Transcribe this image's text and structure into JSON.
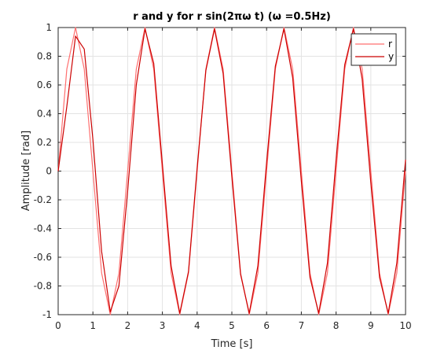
{
  "chart_data": {
    "type": "line",
    "title": "r and y for r sin(2πω t) (ω =0.5Hz)",
    "xlabel": "Time [s]",
    "ylabel": "Amplitude [rad]",
    "xlim": [
      0,
      10
    ],
    "ylim": [
      -1,
      1
    ],
    "xticks": [
      0,
      1,
      2,
      3,
      4,
      5,
      6,
      7,
      8,
      9,
      10
    ],
    "xtick_labels": [
      "0",
      "1",
      "2",
      "3",
      "4",
      "5",
      "6",
      "7",
      "8",
      "9",
      "10"
    ],
    "yticks": [
      -1,
      -0.8,
      -0.6,
      -0.4,
      -0.2,
      0,
      0.2,
      0.4,
      0.6,
      0.8,
      1
    ],
    "ytick_labels": [
      "-1",
      "-0.8",
      "-0.6",
      "-0.4",
      "-0.2",
      "0",
      "0.2",
      "0.4",
      "0.6",
      "0.8",
      "1"
    ],
    "grid": true,
    "legend_position": "top-right",
    "series": [
      {
        "name": "r",
        "color": "#ff6f6f",
        "x": [
          0,
          0.25,
          0.5,
          0.75,
          1,
          1.25,
          1.5,
          1.75,
          2,
          2.25,
          2.5,
          2.75,
          3,
          3.25,
          3.5,
          3.75,
          4,
          4.25,
          4.5,
          4.75,
          5,
          5.25,
          5.5,
          5.75,
          6,
          6.25,
          6.5,
          6.75,
          7,
          7.25,
          7.5,
          7.75,
          8,
          8.25,
          8.5,
          8.75,
          9,
          9.25,
          9.5,
          9.75,
          10
        ],
        "y": [
          0,
          0.71,
          1,
          0.71,
          0,
          -0.71,
          -1,
          -0.71,
          0,
          0.71,
          1,
          0.71,
          0,
          -0.71,
          -1,
          -0.71,
          0,
          0.71,
          1,
          0.71,
          0,
          -0.71,
          -1,
          -0.71,
          0,
          0.71,
          1,
          0.71,
          0,
          -0.71,
          -1,
          -0.71,
          0,
          0.71,
          1,
          0.71,
          0,
          -0.71,
          -1,
          -0.71,
          0
        ]
      },
      {
        "name": "y",
        "color": "#cc0000",
        "x": [
          0,
          0.25,
          0.5,
          0.75,
          1,
          1.25,
          1.5,
          1.75,
          2,
          2.25,
          2.5,
          2.75,
          3,
          3.25,
          3.5,
          3.75,
          4,
          4.25,
          4.5,
          4.75,
          5,
          5.25,
          5.5,
          5.75,
          6,
          6.25,
          6.5,
          6.75,
          7,
          7.25,
          7.5,
          7.75,
          8,
          8.25,
          8.5,
          8.75,
          9,
          9.25,
          9.5,
          9.75,
          10
        ],
        "y": [
          0,
          0.45,
          0.94,
          0.85,
          0.22,
          -0.56,
          -0.98,
          -0.8,
          -0.14,
          0.6,
          0.99,
          0.75,
          0.05,
          -0.66,
          -0.99,
          -0.7,
          0.02,
          0.7,
          0.99,
          0.68,
          -0.04,
          -0.72,
          -0.99,
          -0.66,
          0.06,
          0.73,
          0.99,
          0.65,
          -0.07,
          -0.74,
          -0.99,
          -0.64,
          0.08,
          0.74,
          0.99,
          0.64,
          -0.08,
          -0.74,
          -0.99,
          -0.64,
          0.08
        ]
      }
    ]
  }
}
